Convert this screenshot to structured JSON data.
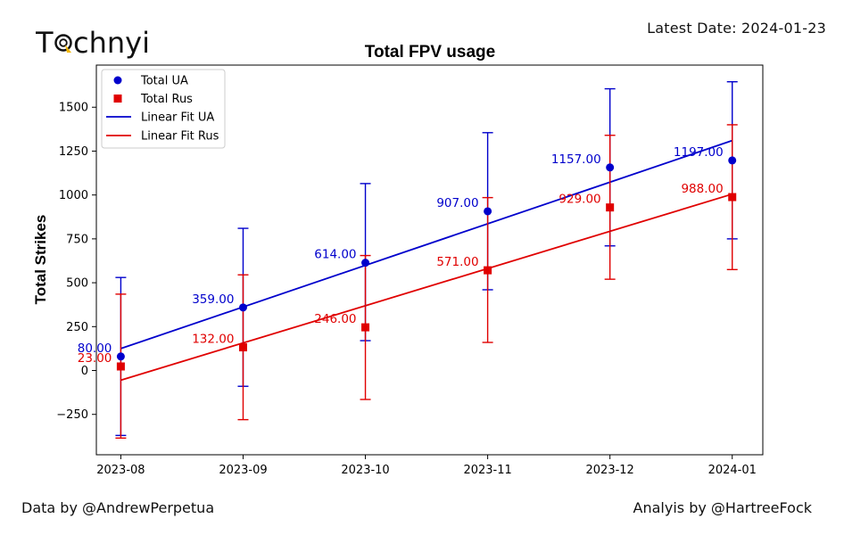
{
  "header": {
    "logo": {
      "prefix": "T",
      "suffix": "chnyi",
      "icon": "target-arrow-icon"
    },
    "latest_date": "Latest Date: 2024-01-23"
  },
  "footer": {
    "data_credit": "Data by @AndrewPerpetua",
    "analysis_credit": "Analyis by @HartreeFock"
  },
  "colors": {
    "ua": "#0000cc",
    "rus": "#e00000",
    "axis": "#000000"
  },
  "chart_data": {
    "type": "scatter",
    "title": "Total FPV usage",
    "xlabel": "",
    "ylabel": "Total Strikes",
    "categories": [
      "2023-08",
      "2023-09",
      "2023-10",
      "2023-11",
      "2023-12",
      "2024-01"
    ],
    "x_ticks": [
      "2023-08",
      "2023-09",
      "2023-10",
      "2023-11",
      "2023-12",
      "2024-01"
    ],
    "x_index_range": [
      -0.2,
      5.25
    ],
    "ylim": [
      -480,
      1740
    ],
    "y_ticks": [
      -250,
      0,
      250,
      500,
      750,
      1000,
      1250,
      1500
    ],
    "grid": false,
    "legend_position": "top-left",
    "series": [
      {
        "name": "Total UA",
        "kind": "points",
        "marker": "circle",
        "color": "#0000cc",
        "values": [
          80,
          359,
          614,
          907,
          1157,
          1197
        ],
        "labels": [
          "80.00",
          "359.00",
          "614.00",
          "907.00",
          "1157.00",
          "1197.00"
        ],
        "error_low": [
          -370,
          -90,
          170,
          460,
          710,
          750
        ],
        "error_high": [
          530,
          810,
          1065,
          1355,
          1605,
          1645
        ]
      },
      {
        "name": "Total Rus",
        "kind": "points",
        "marker": "square",
        "color": "#e00000",
        "values": [
          23,
          132,
          246,
          571,
          929,
          988
        ],
        "labels": [
          "23.00",
          "132.00",
          "246.00",
          "571.00",
          "929.00",
          "988.00"
        ],
        "error_low": [
          -385,
          -280,
          -165,
          160,
          520,
          575
        ],
        "error_high": [
          435,
          545,
          655,
          985,
          1340,
          1400
        ]
      },
      {
        "name": "Linear Fit UA",
        "kind": "line",
        "color": "#0000cc",
        "start": 125,
        "end": 1310
      },
      {
        "name": "Linear Fit Rus",
        "kind": "line",
        "color": "#e00000",
        "start": -55,
        "end": 1005
      }
    ]
  }
}
